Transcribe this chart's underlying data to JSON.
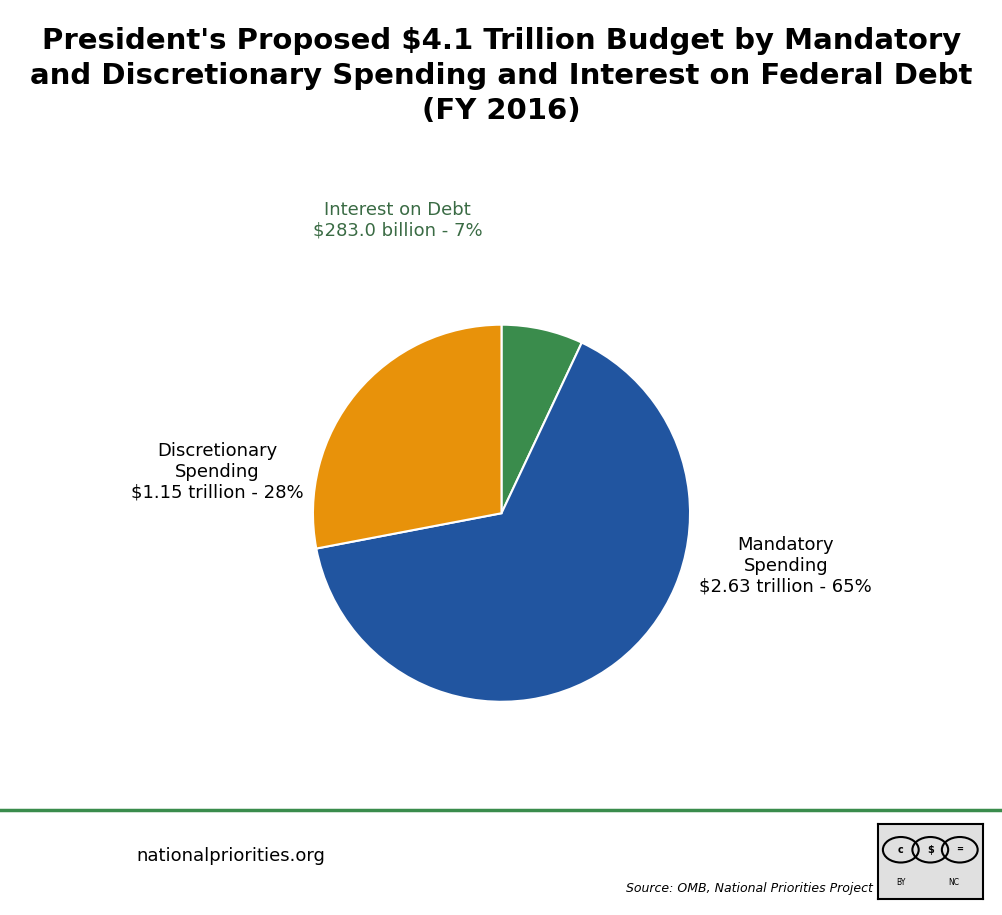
{
  "title_line1": "President's Proposed $4.1 Trillion Budget by Mandatory",
  "title_line2": "and Discretionary Spending and Interest on Federal Debt",
  "title_line3": "(FY 2016)",
  "slices": [
    7,
    65,
    28
  ],
  "colors": [
    "#3a8c4c",
    "#2155a0",
    "#e8920a"
  ],
  "label_mandatory": "Mandatory\nSpending\n$2.63 trillion - 65%",
  "label_discretionary": "Discretionary\nSpending\n$1.15 trillion - 28%",
  "label_interest": "Interest on Debt\n$283.0 billion - 7%",
  "label_color": "#000000",
  "label_color_interest": "#3a6b44",
  "startangle": 90,
  "background_color": "#ffffff",
  "footer_line_color": "#3a8c4c",
  "footer_text": "nationalpriorities.org",
  "source_text": "Source: OMB, National Priorities Project",
  "logo_bg_color": "#2a8a44",
  "title_fontsize": 21,
  "label_fontsize": 13
}
